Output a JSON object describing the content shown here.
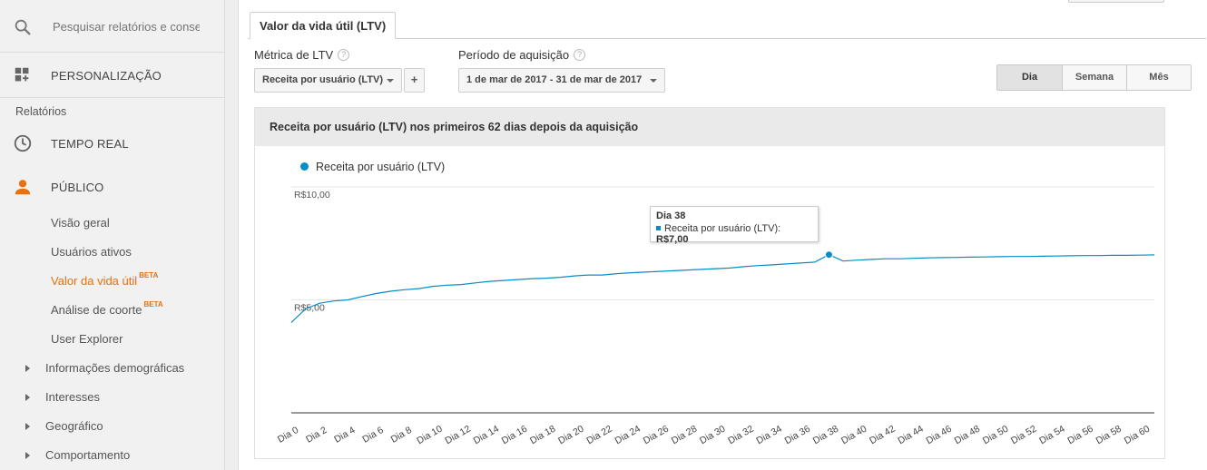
{
  "search": {
    "placeholder": "Pesquisar relatórios e conse"
  },
  "sidebar": {
    "personalizacao": "PERSONALIZAÇÃO",
    "section_reports": "Relatórios",
    "tempo_real": "TEMPO REAL",
    "publico": "PÚBLICO",
    "items": [
      {
        "label": "Visão geral"
      },
      {
        "label": "Usuários ativos"
      },
      {
        "label": "Valor da vida útil",
        "badge": "BETA"
      },
      {
        "label": "Análise de coorte",
        "badge": "BETA"
      },
      {
        "label": "User Explorer"
      }
    ],
    "expandable": [
      {
        "label": "Informações demográficas"
      },
      {
        "label": "Interesses"
      },
      {
        "label": "Geográfico"
      },
      {
        "label": "Comportamento"
      }
    ],
    "accent": "#e8710a"
  },
  "main": {
    "tab_label": "Valor da vida útil (LTV)",
    "ltv_metric_label": "Métrica de LTV",
    "ltv_metric_value": "Receita por usuário (LTV)",
    "plus_label": "+",
    "period_label": "Período de aquisição",
    "period_value": "1 de mar de 2017 - 31 de mar de 2017",
    "help_glyph": "?",
    "granularity": [
      "Dia",
      "Semana",
      "Mês"
    ],
    "granularity_selected": "Dia"
  },
  "chart_data": {
    "type": "line",
    "title": "Receita por usuário (LTV) nos primeiros 62 dias depois da aquisição",
    "series": [
      {
        "name": "Receita por usuário (LTV)",
        "color": "#058dc7",
        "values": [
          4.0,
          4.6,
          4.85,
          4.95,
          5.0,
          5.15,
          5.28,
          5.38,
          5.45,
          5.5,
          5.6,
          5.65,
          5.68,
          5.75,
          5.82,
          5.86,
          5.9,
          5.94,
          5.96,
          6.0,
          6.06,
          6.1,
          6.1,
          6.16,
          6.2,
          6.23,
          6.26,
          6.29,
          6.32,
          6.35,
          6.38,
          6.41,
          6.47,
          6.52,
          6.55,
          6.59,
          6.63,
          6.67,
          7.0,
          6.72,
          6.76,
          6.79,
          6.82,
          6.82,
          6.84,
          6.86,
          6.87,
          6.88,
          6.89,
          6.9,
          6.91,
          6.92,
          6.92,
          6.93,
          6.94,
          6.95,
          6.96,
          6.96,
          6.97,
          6.97,
          6.98,
          6.99
        ]
      }
    ],
    "x_tick_labels": [
      "Dia 0",
      "Dia 2",
      "Dia 4",
      "Dia 6",
      "Dia 8",
      "Dia 10",
      "Dia 12",
      "Dia 14",
      "Dia 16",
      "Dia 18",
      "Dia 20",
      "Dia 22",
      "Dia 24",
      "Dia 26",
      "Dia 28",
      "Dia 30",
      "Dia 32",
      "Dia 34",
      "Dia 36",
      "Dia 38",
      "Dia 40",
      "Dia 42",
      "Dia 44",
      "Dia 46",
      "Dia 48",
      "Dia 50",
      "Dia 52",
      "Dia 54",
      "Dia 56",
      "Dia 58",
      "Dia 60"
    ],
    "y_ticks": [
      {
        "value": 10,
        "label": "R$10,00"
      },
      {
        "value": 5,
        "label": "R$5,00"
      }
    ],
    "ylim": [
      0,
      10
    ],
    "grid": true,
    "legend_position": "top-left",
    "highlight": {
      "day": 38,
      "title": "Dia 38",
      "series_label": "Receita por usuário (LTV):",
      "value_label": "R$7,00"
    }
  }
}
